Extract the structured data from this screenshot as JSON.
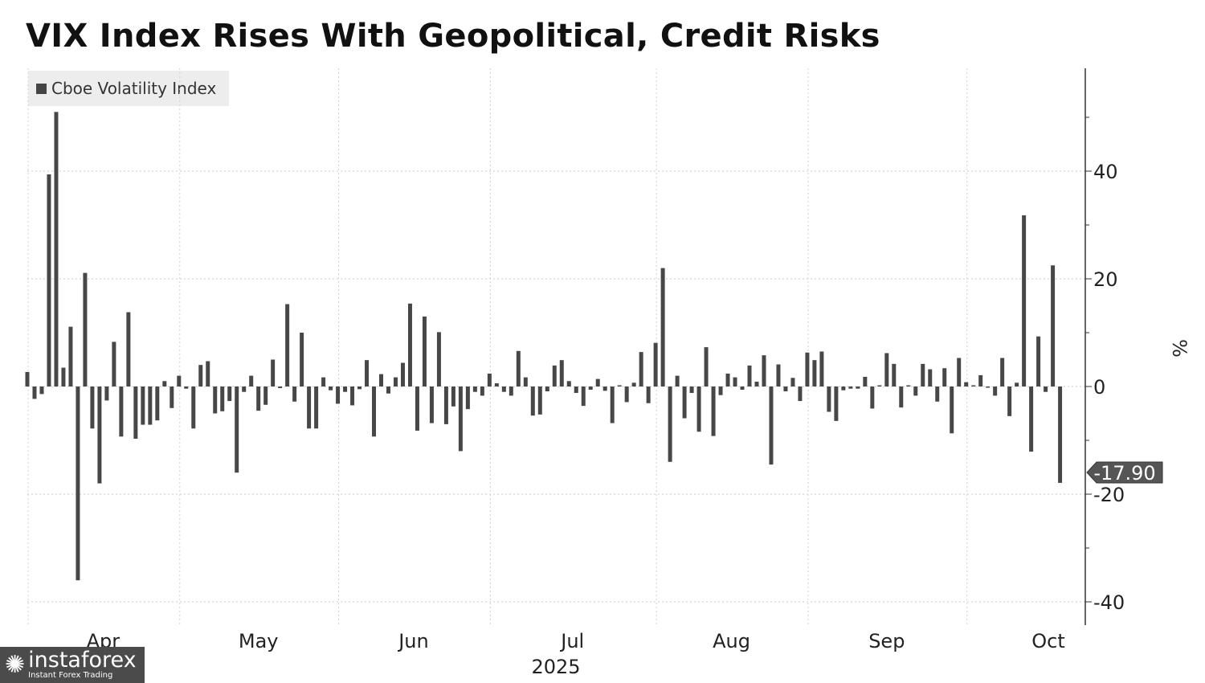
{
  "chart_data": {
    "type": "bar",
    "title": "VIX Index Rises With Geopolitical, Credit Risks",
    "legend": {
      "label": "Cboe Volatility Index",
      "placement": "top-left"
    },
    "ylabel": "%",
    "xlabel": "",
    "ylim": [
      -44,
      59
    ],
    "yticks": [
      40,
      20,
      0,
      -20,
      -40
    ],
    "grid": true,
    "x_month_labels": [
      "Apr",
      "May",
      "Jun",
      "Jul",
      "Aug",
      "Sep",
      "Oct"
    ],
    "x_year_label": "2025",
    "month_boundaries_bar_index": [
      0,
      21,
      43,
      64,
      87,
      108,
      130
    ],
    "last_value_label": "-17.90",
    "bar_color": "#474747",
    "values": [
      2.7,
      -2.3,
      -1.4,
      39.4,
      51,
      3.5,
      11.1,
      -36,
      21.1,
      -7.8,
      -18,
      -2.6,
      8.3,
      -9.3,
      13.8,
      -9.7,
      -7.1,
      -7.1,
      -6.3,
      1.0,
      -4.0,
      2.0,
      -0.4,
      -7.8,
      4.0,
      4.7,
      -5.0,
      -4.6,
      -2.7,
      -16,
      -1.0,
      2.0,
      -4.5,
      -3.4,
      5.0,
      -0.3,
      15.3,
      -2.8,
      10.0,
      -7.8,
      -7.8,
      1.7,
      -0.7,
      -3.2,
      -1.0,
      -3.5,
      -0.5,
      4.9,
      -9.3,
      2.3,
      -1.3,
      1.7,
      4.4,
      15.4,
      -8.2,
      13.0,
      -6.8,
      10.1,
      -7.0,
      -3.7,
      -12.0,
      -4.2,
      -1.0,
      -1.7,
      2.4,
      0.6,
      -1.0,
      -1.7,
      6.6,
      1.7,
      -5.4,
      -5.2,
      -0.9,
      3.9,
      4.9,
      1.0,
      -1.2,
      -3.6,
      -0.6,
      1.4,
      -0.8,
      -6.8,
      0.1,
      -2.9,
      0.7,
      6.4,
      -3.1,
      8.1,
      22.0,
      -14.0,
      2.0,
      -5.9,
      -1.2,
      -8.4,
      7.3,
      -9.2,
      -1.6,
      2.4,
      1.7,
      -0.6,
      3.9,
      0.9,
      5.8,
      -14.5,
      4.1,
      -0.9,
      1.6,
      -2.7,
      6.3,
      4.9,
      6.5,
      -4.7,
      -6.4,
      -0.7,
      -0.4,
      -0.4,
      1.8,
      -4.1,
      0.1,
      6.2,
      4.2,
      -3.9,
      0.1,
      -1.7,
      4.2,
      3.2,
      -2.8,
      3.4,
      -8.7,
      5.3,
      0.8,
      0.1,
      2.1,
      -0.1,
      -1.7,
      5.3,
      -5.5,
      0.7,
      31.8,
      -12.1,
      9.3,
      -1.0,
      22.5,
      -17.9
    ]
  },
  "watermark": {
    "name": "instaforex",
    "tagline": "Instant Forex Trading"
  }
}
